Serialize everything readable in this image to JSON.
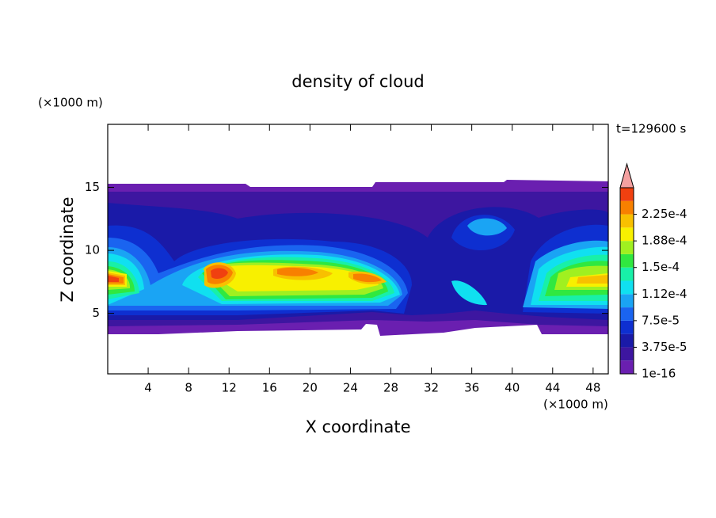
{
  "chart_data": {
    "type": "contour",
    "title": "density of cloud",
    "time_label": "t=129600 s",
    "xlabel": "X coordinate",
    "ylabel": "Z coordinate",
    "xunit": "(×1000 m)",
    "yunit": "(×1000 m)",
    "xlim": [
      0,
      49.5
    ],
    "ylim": [
      0.2,
      20
    ],
    "xticks": [
      4,
      8,
      12,
      16,
      20,
      24,
      28,
      32,
      36,
      40,
      44,
      48
    ],
    "yticks": [
      5,
      10,
      15
    ],
    "clim": [
      1e-16,
      0.0002625
    ],
    "cticks": [
      1e-16,
      {
        "value": 3.75e-05,
        "label": "3.75e-5"
      },
      {
        "value": 7.5e-05,
        "label": "7.5e-5"
      },
      {
        "value": 0.0001125,
        "label": "1.12e-4"
      },
      {
        "value": 0.00015,
        "label": "1.5e-4"
      },
      {
        "value": 0.0001875,
        "label": "1.88e-4"
      },
      {
        "value": 0.000225,
        "label": "2.25e-4"
      }
    ],
    "colors": [
      "#6a1fb0",
      "#3d16a0",
      "#1a1aa8",
      "#0e2fd0",
      "#1a64f0",
      "#1aa4f4",
      "#10e0f0",
      "#18f0a8",
      "#30e840",
      "#a0f020",
      "#f8f000",
      "#f8c000",
      "#f88000",
      "#f04010"
    ],
    "extend_color": "#f4a0a0"
  }
}
